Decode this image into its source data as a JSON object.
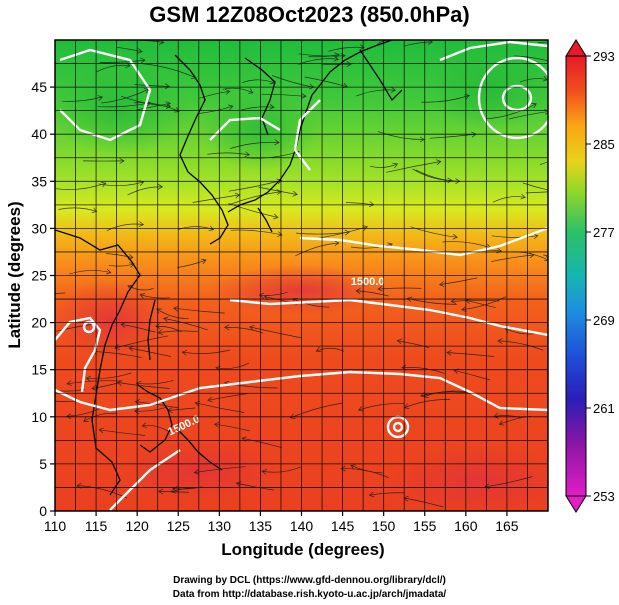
{
  "title": "GSM 12Z08Oct2023 (850.0hPa)",
  "x_axis": {
    "label": "Longitude (degrees)",
    "min": 110,
    "max": 170,
    "ticks": [
      110,
      115,
      120,
      125,
      130,
      135,
      140,
      145,
      150,
      155,
      160,
      165
    ]
  },
  "y_axis": {
    "label": "Latitude  (degrees)",
    "min": 0,
    "max": 50,
    "ticks": [
      0,
      5,
      10,
      15,
      20,
      25,
      30,
      35,
      40,
      45
    ]
  },
  "colorbar": {
    "min": 253,
    "max": 293,
    "ticks": [
      293,
      285,
      277,
      269,
      261,
      253
    ],
    "colors": [
      "#e51a2a",
      "#f0501c",
      "#f77d12",
      "#f9a811",
      "#e8d21a",
      "#b6e024",
      "#5fd02c",
      "#2cc068",
      "#16b5b0",
      "#1c8fe0",
      "#1f50d8",
      "#2a1eb8",
      "#6a16a8",
      "#a8169e",
      "#e21ec4"
    ]
  },
  "contour_labels": [
    {
      "text": "1500.0",
      "lon": 146,
      "lat": 24
    },
    {
      "text": "1500.0",
      "lon": 124,
      "lat": 8
    }
  ],
  "credits": [
    "Drawing by DCL (https://www.gfd-dennou.org/library/dcl/)",
    "Data from http://database.rish.kyoto-u.ac.jp/arch/jmadata/"
  ]
}
